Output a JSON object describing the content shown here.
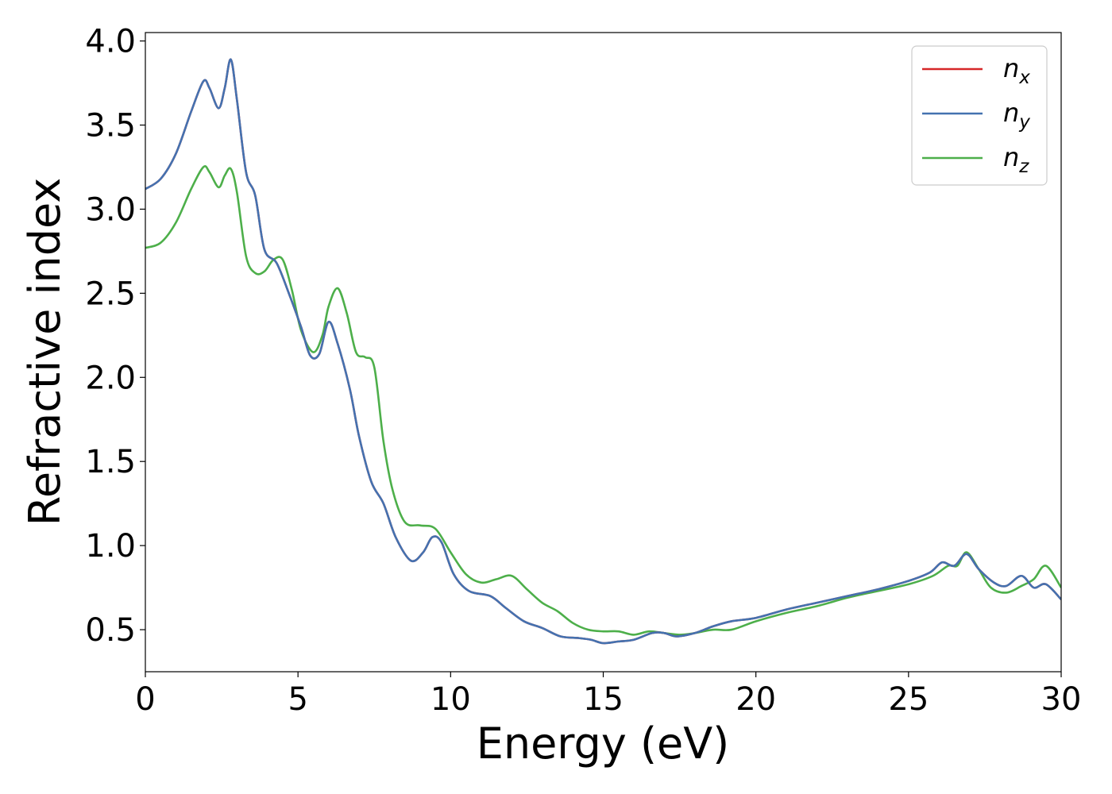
{
  "chart_data": {
    "type": "line",
    "xlabel": "Energy (eV)",
    "ylabel": "Refractive index",
    "xlim": [
      0,
      30
    ],
    "ylim": [
      0.25,
      4.05
    ],
    "xticks": [
      "0",
      "5",
      "10",
      "15",
      "20",
      "25",
      "30"
    ],
    "yticks": [
      "0.5",
      "1.0",
      "1.5",
      "2.0",
      "2.5",
      "3.0",
      "3.5",
      "4.0"
    ],
    "grid": false,
    "legend_position": "top-right",
    "series": [
      {
        "name": "n_x",
        "label_base": "n",
        "label_sub": "x",
        "color": "#d62728",
        "x": [
          0,
          0.5,
          1.0,
          1.5,
          1.9,
          2.1,
          2.4,
          2.6,
          2.8,
          3.0,
          3.3,
          3.6,
          3.9,
          4.3,
          4.7,
          5.1,
          5.4,
          5.7,
          6.0,
          6.3,
          6.7,
          7.0,
          7.4,
          7.8,
          8.2,
          8.7,
          9.1,
          9.4,
          9.7,
          10.1,
          10.6,
          11.3,
          11.8,
          12.4,
          13.0,
          13.6,
          14.2,
          14.6,
          15.0,
          15.5,
          16.0,
          16.6,
          17.0,
          17.4,
          18.0,
          18.6,
          19.2,
          20.0,
          21.0,
          22.0,
          23.0,
          24.0,
          25.0,
          25.7,
          26.1,
          26.5,
          26.9,
          27.3,
          27.8,
          28.2,
          28.7,
          29.1,
          29.5,
          30.0
        ],
        "y": [
          3.12,
          3.18,
          3.33,
          3.58,
          3.76,
          3.72,
          3.6,
          3.72,
          3.89,
          3.65,
          3.22,
          3.08,
          2.76,
          2.68,
          2.5,
          2.3,
          2.13,
          2.14,
          2.33,
          2.2,
          1.93,
          1.65,
          1.38,
          1.25,
          1.05,
          0.91,
          0.96,
          1.05,
          1.02,
          0.83,
          0.73,
          0.7,
          0.63,
          0.55,
          0.51,
          0.46,
          0.45,
          0.44,
          0.42,
          0.43,
          0.44,
          0.48,
          0.48,
          0.46,
          0.48,
          0.52,
          0.55,
          0.57,
          0.62,
          0.66,
          0.7,
          0.74,
          0.79,
          0.84,
          0.9,
          0.88,
          0.95,
          0.86,
          0.78,
          0.76,
          0.82,
          0.75,
          0.77,
          0.68
        ]
      },
      {
        "name": "n_y",
        "label_base": "n",
        "label_sub": "y",
        "color": "#4472b0",
        "x": [
          0,
          0.5,
          1.0,
          1.5,
          1.9,
          2.1,
          2.4,
          2.6,
          2.8,
          3.0,
          3.3,
          3.6,
          3.9,
          4.3,
          4.7,
          5.1,
          5.4,
          5.7,
          6.0,
          6.3,
          6.7,
          7.0,
          7.4,
          7.8,
          8.2,
          8.7,
          9.1,
          9.4,
          9.7,
          10.1,
          10.6,
          11.3,
          11.8,
          12.4,
          13.0,
          13.6,
          14.2,
          14.6,
          15.0,
          15.5,
          16.0,
          16.6,
          17.0,
          17.4,
          18.0,
          18.6,
          19.2,
          20.0,
          21.0,
          22.0,
          23.0,
          24.0,
          25.0,
          25.7,
          26.1,
          26.5,
          26.9,
          27.3,
          27.8,
          28.2,
          28.7,
          29.1,
          29.5,
          30.0
        ],
        "y": [
          3.12,
          3.18,
          3.33,
          3.58,
          3.76,
          3.72,
          3.6,
          3.72,
          3.89,
          3.65,
          3.22,
          3.08,
          2.76,
          2.68,
          2.5,
          2.3,
          2.13,
          2.14,
          2.33,
          2.2,
          1.93,
          1.65,
          1.38,
          1.25,
          1.05,
          0.91,
          0.96,
          1.05,
          1.02,
          0.83,
          0.73,
          0.7,
          0.63,
          0.55,
          0.51,
          0.46,
          0.45,
          0.44,
          0.42,
          0.43,
          0.44,
          0.48,
          0.48,
          0.46,
          0.48,
          0.52,
          0.55,
          0.57,
          0.62,
          0.66,
          0.7,
          0.74,
          0.79,
          0.84,
          0.9,
          0.88,
          0.95,
          0.86,
          0.78,
          0.76,
          0.82,
          0.75,
          0.77,
          0.68
        ]
      },
      {
        "name": "n_z",
        "label_base": "n",
        "label_sub": "z",
        "color": "#4daf4a",
        "x": [
          0,
          0.5,
          1.0,
          1.5,
          1.9,
          2.1,
          2.4,
          2.6,
          2.8,
          3.0,
          3.3,
          3.6,
          3.9,
          4.2,
          4.5,
          4.8,
          5.1,
          5.5,
          5.8,
          6.0,
          6.3,
          6.6,
          6.9,
          7.2,
          7.5,
          7.8,
          8.1,
          8.5,
          9.0,
          9.5,
          10.0,
          10.5,
          11.0,
          11.5,
          12.0,
          12.5,
          13.0,
          13.5,
          14.0,
          14.5,
          15.0,
          15.5,
          16.0,
          16.5,
          17.0,
          17.5,
          18.0,
          18.6,
          19.2,
          20.0,
          21.0,
          22.0,
          23.0,
          24.0,
          25.0,
          25.8,
          26.3,
          26.6,
          26.9,
          27.3,
          27.7,
          28.2,
          28.7,
          29.1,
          29.5,
          30.0
        ],
        "y": [
          2.77,
          2.8,
          2.92,
          3.12,
          3.25,
          3.22,
          3.13,
          3.2,
          3.24,
          3.1,
          2.72,
          2.62,
          2.63,
          2.7,
          2.7,
          2.52,
          2.28,
          2.15,
          2.25,
          2.42,
          2.53,
          2.38,
          2.15,
          2.12,
          2.06,
          1.62,
          1.33,
          1.14,
          1.12,
          1.1,
          0.96,
          0.83,
          0.78,
          0.8,
          0.82,
          0.74,
          0.66,
          0.61,
          0.54,
          0.5,
          0.49,
          0.49,
          0.47,
          0.49,
          0.48,
          0.47,
          0.48,
          0.5,
          0.5,
          0.55,
          0.6,
          0.64,
          0.69,
          0.73,
          0.77,
          0.82,
          0.88,
          0.88,
          0.96,
          0.86,
          0.75,
          0.72,
          0.76,
          0.8,
          0.88,
          0.75
        ]
      }
    ]
  }
}
